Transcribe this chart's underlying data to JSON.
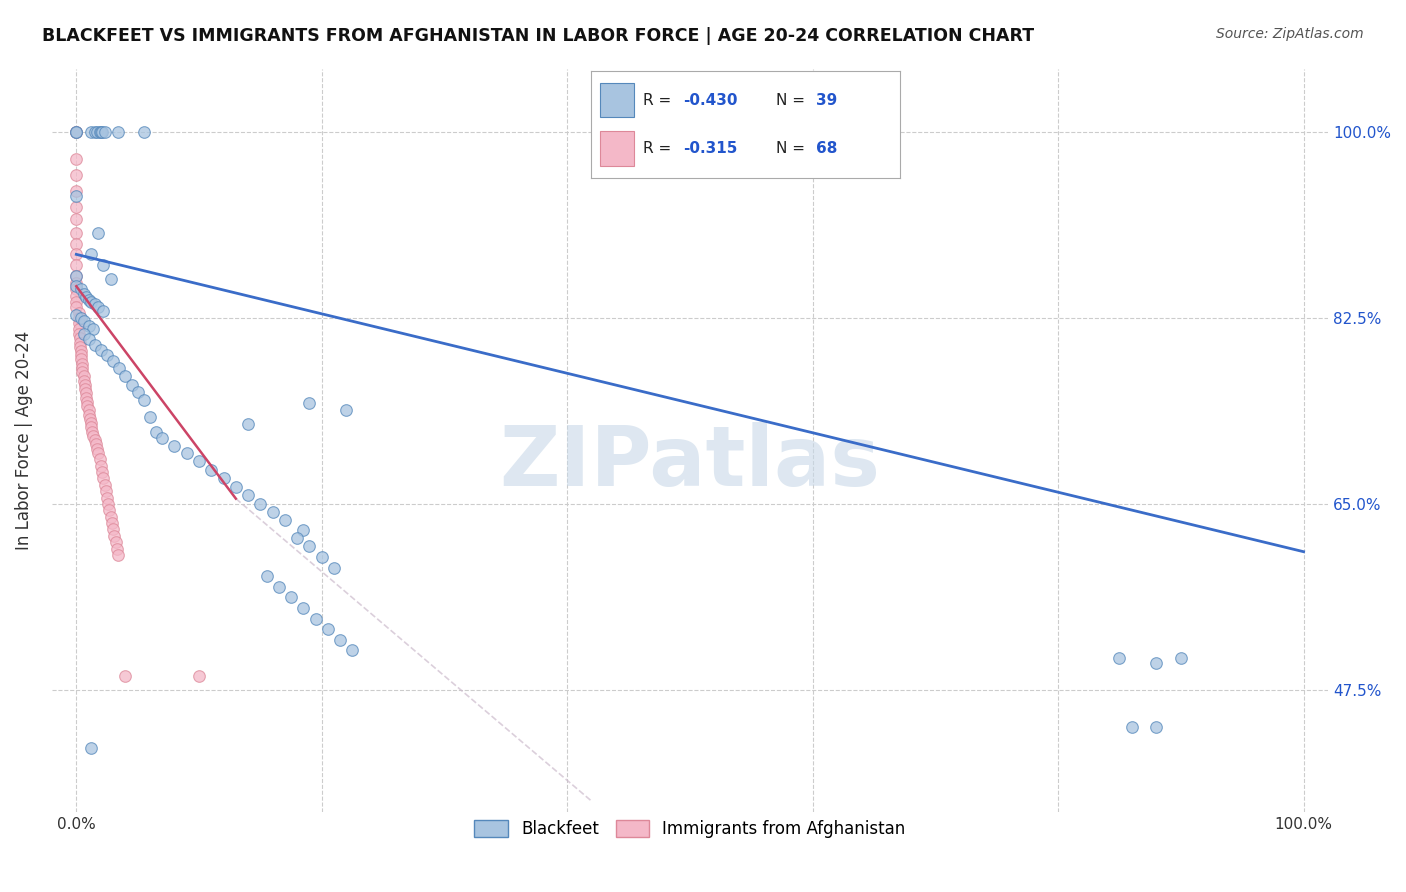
{
  "title": "BLACKFEET VS IMMIGRANTS FROM AFGHANISTAN IN LABOR FORCE | AGE 20-24 CORRELATION CHART",
  "source": "Source: ZipAtlas.com",
  "ylabel": "In Labor Force | Age 20-24",
  "x_lim": [
    -0.02,
    1.02
  ],
  "y_lim": [
    0.36,
    1.06
  ],
  "y_ticks": [
    0.475,
    0.65,
    0.825,
    1.0
  ],
  "y_tick_labels": [
    "47.5%",
    "65.0%",
    "82.5%",
    "100.0%"
  ],
  "x_ticks": [
    0.0,
    0.2,
    0.4,
    0.6,
    0.8,
    1.0
  ],
  "x_tick_labels": [
    "0.0%",
    "",
    "",
    "",
    "",
    "100.0%"
  ],
  "grid_color": "#cccccc",
  "background_color": "#ffffff",
  "watermark": "ZIPatlas",
  "watermark_color": "#c8d8e8",
  "blue_line_color": "#3a6cc8",
  "pink_line_color": "#cc4466",
  "pink_dashed_color": "#ccbbcc",
  "scatter_blue_color": "#a8c4e0",
  "scatter_pink_color": "#f4b8c8",
  "scatter_blue_edge": "#5588bb",
  "scatter_pink_edge": "#dd8899",
  "marker_size": 70,
  "alpha": 0.75,
  "legend_r_color": "#2255cc",
  "legend_n_color": "#2255cc",
  "tick_color": "#2255cc",
  "blue_line": {
    "x0": 0.0,
    "y0": 0.885,
    "x1": 1.0,
    "y1": 0.605
  },
  "pink_line_solid": {
    "x0": 0.0,
    "y0": 0.855,
    "x1": 0.13,
    "y1": 0.655
  },
  "pink_line_dashed": {
    "x0": 0.13,
    "y0": 0.655,
    "x1": 0.42,
    "y1": 0.37
  },
  "blue_scatter": [
    [
      0.0,
      1.0
    ],
    [
      0.0,
      1.0
    ],
    [
      0.012,
      1.0
    ],
    [
      0.015,
      1.0
    ],
    [
      0.017,
      1.0
    ],
    [
      0.019,
      1.0
    ],
    [
      0.02,
      1.0
    ],
    [
      0.021,
      1.0
    ],
    [
      0.023,
      1.0
    ],
    [
      0.034,
      1.0
    ],
    [
      0.055,
      1.0
    ],
    [
      0.0,
      0.94
    ],
    [
      0.018,
      0.905
    ],
    [
      0.012,
      0.885
    ],
    [
      0.022,
      0.875
    ],
    [
      0.0,
      0.865
    ],
    [
      0.028,
      0.862
    ],
    [
      0.0,
      0.855
    ],
    [
      0.004,
      0.852
    ],
    [
      0.006,
      0.848
    ],
    [
      0.008,
      0.845
    ],
    [
      0.01,
      0.842
    ],
    [
      0.012,
      0.84
    ],
    [
      0.015,
      0.838
    ],
    [
      0.018,
      0.835
    ],
    [
      0.022,
      0.832
    ],
    [
      0.0,
      0.828
    ],
    [
      0.004,
      0.825
    ],
    [
      0.006,
      0.822
    ],
    [
      0.01,
      0.818
    ],
    [
      0.014,
      0.815
    ],
    [
      0.006,
      0.81
    ],
    [
      0.01,
      0.805
    ],
    [
      0.015,
      0.8
    ],
    [
      0.02,
      0.795
    ],
    [
      0.025,
      0.79
    ],
    [
      0.03,
      0.785
    ],
    [
      0.035,
      0.778
    ],
    [
      0.04,
      0.77
    ],
    [
      0.045,
      0.762
    ],
    [
      0.05,
      0.755
    ],
    [
      0.055,
      0.748
    ],
    [
      0.19,
      0.745
    ],
    [
      0.22,
      0.738
    ],
    [
      0.06,
      0.732
    ],
    [
      0.14,
      0.725
    ],
    [
      0.065,
      0.718
    ],
    [
      0.07,
      0.712
    ],
    [
      0.08,
      0.705
    ],
    [
      0.09,
      0.698
    ],
    [
      0.1,
      0.69
    ],
    [
      0.11,
      0.682
    ],
    [
      0.12,
      0.674
    ],
    [
      0.13,
      0.666
    ],
    [
      0.14,
      0.658
    ],
    [
      0.15,
      0.65
    ],
    [
      0.16,
      0.642
    ],
    [
      0.17,
      0.635
    ],
    [
      0.185,
      0.625
    ],
    [
      0.18,
      0.618
    ],
    [
      0.19,
      0.61
    ],
    [
      0.2,
      0.6
    ],
    [
      0.21,
      0.59
    ],
    [
      0.155,
      0.582
    ],
    [
      0.165,
      0.572
    ],
    [
      0.175,
      0.562
    ],
    [
      0.185,
      0.552
    ],
    [
      0.195,
      0.542
    ],
    [
      0.205,
      0.532
    ],
    [
      0.215,
      0.522
    ],
    [
      0.225,
      0.512
    ],
    [
      0.85,
      0.505
    ],
    [
      0.9,
      0.505
    ],
    [
      0.88,
      0.5
    ],
    [
      0.86,
      0.44
    ],
    [
      0.88,
      0.44
    ],
    [
      0.012,
      0.42
    ]
  ],
  "pink_scatter": [
    [
      0.0,
      1.0
    ],
    [
      0.0,
      1.0
    ],
    [
      0.0,
      0.975
    ],
    [
      0.0,
      0.96
    ],
    [
      0.0,
      0.945
    ],
    [
      0.0,
      0.93
    ],
    [
      0.0,
      0.918
    ],
    [
      0.0,
      0.905
    ],
    [
      0.0,
      0.895
    ],
    [
      0.0,
      0.885
    ],
    [
      0.0,
      0.875
    ],
    [
      0.0,
      0.865
    ],
    [
      0.0,
      0.858
    ],
    [
      0.0,
      0.852
    ],
    [
      0.0,
      0.846
    ],
    [
      0.0,
      0.84
    ],
    [
      0.0,
      0.835
    ],
    [
      0.002,
      0.83
    ],
    [
      0.002,
      0.825
    ],
    [
      0.002,
      0.82
    ],
    [
      0.002,
      0.815
    ],
    [
      0.002,
      0.81
    ],
    [
      0.003,
      0.806
    ],
    [
      0.003,
      0.802
    ],
    [
      0.003,
      0.798
    ],
    [
      0.004,
      0.794
    ],
    [
      0.004,
      0.79
    ],
    [
      0.004,
      0.786
    ],
    [
      0.005,
      0.782
    ],
    [
      0.005,
      0.778
    ],
    [
      0.005,
      0.774
    ],
    [
      0.006,
      0.77
    ],
    [
      0.006,
      0.766
    ],
    [
      0.007,
      0.762
    ],
    [
      0.007,
      0.758
    ],
    [
      0.008,
      0.754
    ],
    [
      0.008,
      0.75
    ],
    [
      0.009,
      0.746
    ],
    [
      0.009,
      0.742
    ],
    [
      0.01,
      0.738
    ],
    [
      0.01,
      0.734
    ],
    [
      0.011,
      0.73
    ],
    [
      0.012,
      0.726
    ],
    [
      0.012,
      0.722
    ],
    [
      0.013,
      0.718
    ],
    [
      0.014,
      0.714
    ],
    [
      0.015,
      0.71
    ],
    [
      0.016,
      0.706
    ],
    [
      0.017,
      0.702
    ],
    [
      0.018,
      0.698
    ],
    [
      0.019,
      0.692
    ],
    [
      0.02,
      0.686
    ],
    [
      0.021,
      0.68
    ],
    [
      0.022,
      0.674
    ],
    [
      0.023,
      0.668
    ],
    [
      0.024,
      0.662
    ],
    [
      0.025,
      0.656
    ],
    [
      0.026,
      0.65
    ],
    [
      0.027,
      0.644
    ],
    [
      0.028,
      0.638
    ],
    [
      0.029,
      0.632
    ],
    [
      0.03,
      0.626
    ],
    [
      0.031,
      0.62
    ],
    [
      0.032,
      0.614
    ],
    [
      0.033,
      0.608
    ],
    [
      0.034,
      0.602
    ],
    [
      0.04,
      0.488
    ],
    [
      0.1,
      0.488
    ]
  ]
}
